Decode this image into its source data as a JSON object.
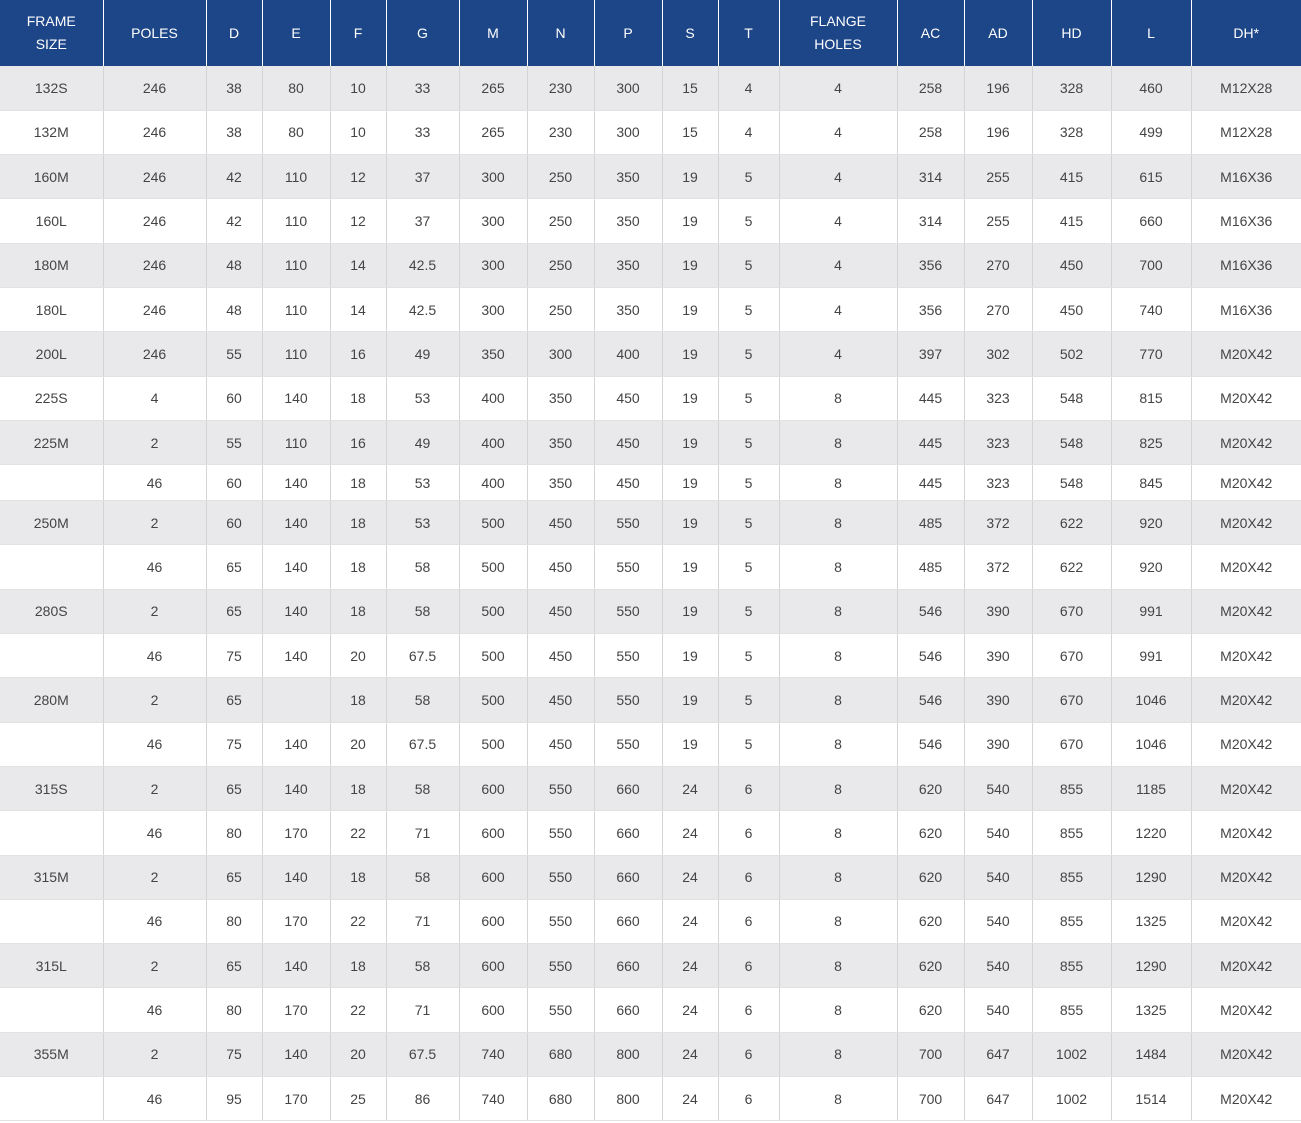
{
  "table": {
    "header": [
      "FRAME SIZE",
      "POLES",
      "D",
      "E",
      "F",
      "G",
      "M",
      "N",
      "P",
      "S",
      "T",
      "FLANGE HOLES",
      "AC",
      "AD",
      "HD",
      "L",
      "DH*"
    ],
    "rows": [
      [
        "132S",
        "246",
        "38",
        "80",
        "10",
        "33",
        "265",
        "230",
        "300",
        "15",
        "4",
        "4",
        "258",
        "196",
        "328",
        "460",
        "M12X28"
      ],
      [
        "132M",
        "246",
        "38",
        "80",
        "10",
        "33",
        "265",
        "230",
        "300",
        "15",
        "4",
        "4",
        "258",
        "196",
        "328",
        "499",
        "M12X28"
      ],
      [
        "160M",
        "246",
        "42",
        "110",
        "12",
        "37",
        "300",
        "250",
        "350",
        "19",
        "5",
        "4",
        "314",
        "255",
        "415",
        "615",
        "M16X36"
      ],
      [
        "160L",
        "246",
        "42",
        "110",
        "12",
        "37",
        "300",
        "250",
        "350",
        "19",
        "5",
        "4",
        "314",
        "255",
        "415",
        "660",
        "M16X36"
      ],
      [
        "180M",
        "246",
        "48",
        "110",
        "14",
        "42.5",
        "300",
        "250",
        "350",
        "19",
        "5",
        "4",
        "356",
        "270",
        "450",
        "700",
        "M16X36"
      ],
      [
        "180L",
        "246",
        "48",
        "110",
        "14",
        "42.5",
        "300",
        "250",
        "350",
        "19",
        "5",
        "4",
        "356",
        "270",
        "450",
        "740",
        "M16X36"
      ],
      [
        "200L",
        "246",
        "55",
        "110",
        "16",
        "49",
        "350",
        "300",
        "400",
        "19",
        "5",
        "4",
        "397",
        "302",
        "502",
        "770",
        "M20X42"
      ],
      [
        "225S",
        "4",
        "60",
        "140",
        "18",
        "53",
        "400",
        "350",
        "450",
        "19",
        "5",
        "8",
        "445",
        "323",
        "548",
        "815",
        "M20X42"
      ],
      [
        "225M",
        "2",
        "55",
        "110",
        "16",
        "49",
        "400",
        "350",
        "450",
        "19",
        "5",
        "8",
        "445",
        "323",
        "548",
        "825",
        "M20X42"
      ],
      [
        null,
        "46",
        "60",
        "140",
        "18",
        "53",
        "400",
        "350",
        "450",
        "19",
        "5",
        "8",
        "445",
        "323",
        "548",
        "845",
        "M20X42"
      ],
      [
        "250M",
        "2",
        "60",
        "140",
        "18",
        "53",
        "500",
        "450",
        "550",
        "19",
        "5",
        "8",
        "485",
        "372",
        "622",
        "920",
        "M20X42"
      ],
      [
        null,
        "46",
        "65",
        "140",
        "18",
        "58",
        "500",
        "450",
        "550",
        "19",
        "5",
        "8",
        "485",
        "372",
        "622",
        "920",
        "M20X42"
      ],
      [
        "280S",
        "2",
        "65",
        "140",
        "18",
        "58",
        "500",
        "450",
        "550",
        "19",
        "5",
        "8",
        "546",
        "390",
        "670",
        "991",
        "M20X42"
      ],
      [
        null,
        "46",
        "75",
        "140",
        "20",
        "67.5",
        "500",
        "450",
        "550",
        "19",
        "5",
        "8",
        "546",
        "390",
        "670",
        "991",
        "M20X42"
      ],
      [
        "280M",
        "2",
        "65",
        null,
        "18",
        "58",
        "500",
        "450",
        "550",
        "19",
        "5",
        "8",
        "546",
        "390",
        "670",
        "1046",
        "M20X42"
      ],
      [
        null,
        "46",
        "75",
        "140",
        "20",
        "67.5",
        "500",
        "450",
        "550",
        "19",
        "5",
        "8",
        "546",
        "390",
        "670",
        "1046",
        "M20X42"
      ],
      [
        "315S",
        "2",
        "65",
        "140",
        "18",
        "58",
        "600",
        "550",
        "660",
        "24",
        "6",
        "8",
        "620",
        "540",
        "855",
        "1185",
        "M20X42"
      ],
      [
        null,
        "46",
        "80",
        "170",
        "22",
        "71",
        "600",
        "550",
        "660",
        "24",
        "6",
        "8",
        "620",
        "540",
        "855",
        "1220",
        "M20X42"
      ],
      [
        "315M",
        "2",
        "65",
        "140",
        "18",
        "58",
        "600",
        "550",
        "660",
        "24",
        "6",
        "8",
        "620",
        "540",
        "855",
        "1290",
        "M20X42"
      ],
      [
        null,
        "46",
        "80",
        "170",
        "22",
        "71",
        "600",
        "550",
        "660",
        "24",
        "6",
        "8",
        "620",
        "540",
        "855",
        "1325",
        "M20X42"
      ],
      [
        "315L",
        "2",
        "65",
        "140",
        "18",
        "58",
        "600",
        "550",
        "660",
        "24",
        "6",
        "8",
        "620",
        "540",
        "855",
        "1290",
        "M20X42"
      ],
      [
        null,
        "46",
        "80",
        "170",
        "22",
        "71",
        "600",
        "550",
        "660",
        "24",
        "6",
        "8",
        "620",
        "540",
        "855",
        "1325",
        "M20X42"
      ],
      [
        "355M",
        "2",
        "75",
        "140",
        "20",
        "67.5",
        "740",
        "680",
        "800",
        "24",
        "6",
        "8",
        "700",
        "647",
        "1002",
        "1484",
        "M20X42"
      ],
      [
        null,
        "46",
        "95",
        "170",
        "25",
        "86",
        "740",
        "680",
        "800",
        "24",
        "6",
        "8",
        "700",
        "647",
        "1002",
        "1514",
        "M20X42"
      ]
    ]
  }
}
